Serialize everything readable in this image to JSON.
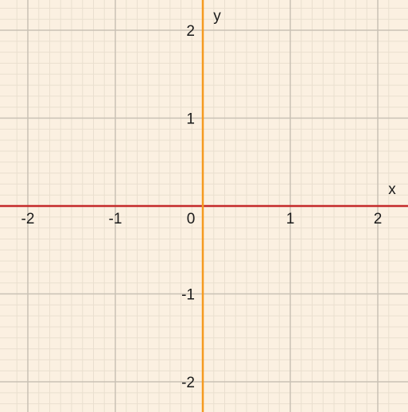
{
  "chart_data": {
    "type": "line",
    "title": "",
    "xlabel": "x",
    "ylabel": "y",
    "xlim": [
      -2.2,
      2.2
    ],
    "ylim": [
      -2.3,
      2.3
    ],
    "major_step": 1,
    "minor_step": 0.125,
    "grid": true,
    "series": [],
    "x_ticks": [
      {
        "value": -2,
        "label": "-2"
      },
      {
        "value": -1,
        "label": "-1"
      },
      {
        "value": 0,
        "label": "0"
      },
      {
        "value": 1,
        "label": "1"
      },
      {
        "value": 2,
        "label": "2"
      }
    ],
    "y_ticks": [
      {
        "value": 2,
        "label": "2"
      },
      {
        "value": 1,
        "label": "1"
      },
      {
        "value": -1,
        "label": "-1"
      },
      {
        "value": -2,
        "label": "-2"
      }
    ],
    "colors": {
      "background": "#fbf0e1",
      "minor_grid": "#eadfcf",
      "major_grid": "#c9c1b5",
      "x_axis": "#c42a2a",
      "y_axis": "#f59a1f"
    }
  }
}
